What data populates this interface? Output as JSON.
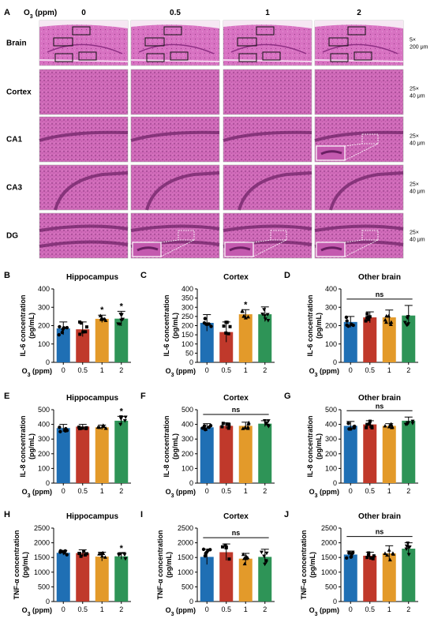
{
  "panel_a": {
    "label": "A",
    "o3_label": "O",
    "o3_sub": "3",
    "o3_unit": " (ppm)",
    "conc_headers": [
      "0",
      "0.5",
      "1",
      "2"
    ],
    "rows": [
      {
        "name": "Brain",
        "mag": "5×",
        "scale": "200 μm"
      },
      {
        "name": "Cortex",
        "mag": "25×",
        "scale": "40 μm"
      },
      {
        "name": "CA1",
        "mag": "25×",
        "scale": "40 μm"
      },
      {
        "name": "CA3",
        "mag": "25×",
        "scale": "40 μm"
      },
      {
        "name": "DG",
        "mag": "25×",
        "scale": "40 μm"
      }
    ]
  },
  "colors": {
    "c0": "#1f6fb4",
    "c05": "#c0392b",
    "c1": "#e39a2a",
    "c2": "#2e9457",
    "tissue": "#d56fc0",
    "tissue_dark": "#b54aa3"
  },
  "x_axis": {
    "label_main": "O",
    "label_sub": "3",
    "label_unit": " (ppm)"
  },
  "chart_data": [
    {
      "id": "B",
      "type": "bar",
      "title": "Hippocampus",
      "ylabel_line1": "IL-6 concentration",
      "ylabel_line2": "(pg/mL)",
      "categories": [
        "0",
        "0.5",
        "1",
        "2"
      ],
      "values": [
        185,
        180,
        237,
        238
      ],
      "errors": [
        35,
        40,
        20,
        40
      ],
      "ylim": [
        0,
        400
      ],
      "yticks": [
        0,
        100,
        200,
        300,
        400
      ],
      "significance": [
        "",
        "",
        "*",
        "*"
      ],
      "ns": ""
    },
    {
      "id": "C",
      "type": "bar",
      "title": "Cortex",
      "ylabel_line1": "IL-6 concentration",
      "ylabel_line2": "(pg/mL)",
      "categories": [
        "0",
        "0.5",
        "1",
        "2"
      ],
      "values": [
        215,
        165,
        262,
        262
      ],
      "errors": [
        45,
        55,
        25,
        40
      ],
      "ylim": [
        0,
        400
      ],
      "yticks": [
        0,
        50,
        100,
        150,
        200,
        250,
        300,
        350,
        400
      ],
      "significance": [
        "",
        "",
        "*",
        ""
      ],
      "ns": ""
    },
    {
      "id": "D",
      "type": "bar",
      "title": "Other brain",
      "ylabel_line1": "IL-6 concentration",
      "ylabel_line2": "(pg/mL)",
      "categories": [
        "0",
        "0.5",
        "1",
        "2"
      ],
      "values": [
        220,
        245,
        245,
        255
      ],
      "errors": [
        30,
        30,
        40,
        55
      ],
      "ylim": [
        0,
        400
      ],
      "yticks": [
        0,
        100,
        200,
        300,
        400
      ],
      "significance": [
        "",
        "",
        "",
        ""
      ],
      "ns": "ns"
    },
    {
      "id": "E",
      "type": "bar",
      "title": "Hippocampus",
      "ylabel_line1": "IL-8 concentration",
      "ylabel_line2": "(pg/mL)",
      "categories": [
        "0",
        "0.5",
        "1",
        "2"
      ],
      "values": [
        375,
        385,
        380,
        425
      ],
      "errors": [
        25,
        15,
        15,
        30
      ],
      "ylim": [
        0,
        500
      ],
      "yticks": [
        0,
        100,
        200,
        300,
        400,
        500
      ],
      "significance": [
        "",
        "",
        "",
        "*"
      ],
      "ns": ""
    },
    {
      "id": "F",
      "type": "bar",
      "title": "Cortex",
      "ylabel_line1": "IL-8 concentration",
      "ylabel_line2": "(pg/mL)",
      "categories": [
        "0",
        "0.5",
        "1",
        "2"
      ],
      "values": [
        380,
        390,
        390,
        405
      ],
      "errors": [
        25,
        20,
        25,
        20
      ],
      "ylim": [
        0,
        500
      ],
      "yticks": [
        0,
        100,
        200,
        300,
        400,
        500
      ],
      "significance": [
        "",
        "",
        "",
        ""
      ],
      "ns": "ns"
    },
    {
      "id": "G",
      "type": "bar",
      "title": "Other brain",
      "ylabel_line1": "IL-8 concentration",
      "ylabel_line2": "(pg/mL)",
      "categories": [
        "0",
        "0.5",
        "1",
        "2"
      ],
      "values": [
        390,
        400,
        390,
        425
      ],
      "errors": [
        30,
        25,
        15,
        25
      ],
      "ylim": [
        0,
        500
      ],
      "yticks": [
        0,
        100,
        200,
        300,
        400,
        500
      ],
      "significance": [
        "",
        "",
        "",
        ""
      ],
      "ns": "ns"
    },
    {
      "id": "H",
      "type": "bar",
      "title": "Hippocampus",
      "ylabel_line1": "TNF-α concentration",
      "ylabel_line2": "(pg/mL)",
      "categories": [
        "0",
        "0.5",
        "1",
        "2"
      ],
      "values": [
        1660,
        1650,
        1530,
        1540
      ],
      "errors": [
        80,
        110,
        150,
        100
      ],
      "ylim": [
        0,
        2500
      ],
      "yticks": [
        0,
        500,
        1000,
        1500,
        2000,
        2500
      ],
      "significance": [
        "",
        "",
        "",
        "*"
      ],
      "ns": ""
    },
    {
      "id": "I",
      "type": "bar",
      "title": "Cortex",
      "ylabel_line1": "TNF-α concentration",
      "ylabel_line2": "(pg/mL)",
      "categories": [
        "0",
        "0.5",
        "1",
        "2"
      ],
      "values": [
        1520,
        1680,
        1460,
        1520
      ],
      "errors": [
        260,
        280,
        180,
        260
      ],
      "ylim": [
        0,
        2500
      ],
      "yticks": [
        0,
        500,
        1000,
        1500,
        2000,
        2500
      ],
      "significance": [
        "",
        "",
        "",
        ""
      ],
      "ns": "ns"
    },
    {
      "id": "J",
      "type": "bar",
      "title": "Other brain",
      "ylabel_line1": "TNF-α concentration",
      "ylabel_line2": "(pg/mL)",
      "categories": [
        "0",
        "0.5",
        "1",
        "2"
      ],
      "values": [
        1600,
        1560,
        1640,
        1800
      ],
      "errors": [
        120,
        120,
        260,
        200
      ],
      "ylim": [
        0,
        2500
      ],
      "yticks": [
        0,
        500,
        1000,
        1500,
        2000,
        2500
      ],
      "significance": [
        "",
        "",
        "",
        ""
      ],
      "ns": "ns"
    }
  ]
}
